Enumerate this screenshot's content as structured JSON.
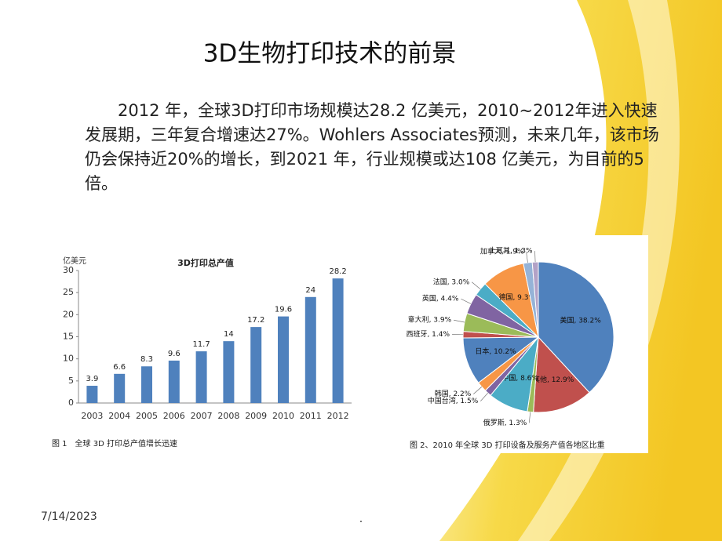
{
  "title": "3D生物打印技术的前景",
  "body": "2012 年，全球3D打印市场规模达28.2 亿美元，2010~2012年进入快速发展期，三年复合增速达27%。Wohlers Associates预测，未来几年，该市场仍会保持近20%的增长，到2021 年，行业规模或达108 亿美元，为目前的5 倍。",
  "chart_data": [
    {
      "type": "bar",
      "title": "3D打印总产值",
      "y_label": "亿美元",
      "caption": "图 1　全球 3D 打印总产值增长迅速",
      "categories": [
        "2003",
        "2004",
        "2005",
        "2006",
        "2007",
        "2008",
        "2009",
        "2010",
        "2011",
        "2012"
      ],
      "values": [
        3.9,
        6.6,
        8.3,
        9.6,
        11.7,
        14,
        17.2,
        19.6,
        24,
        28.2
      ],
      "color": "#4f81bd",
      "ylim": [
        0,
        30
      ],
      "yticks": [
        0,
        5,
        10,
        15,
        20,
        25,
        30
      ]
    },
    {
      "type": "pie",
      "caption": "图 2、2010 年全球 3D 打印设备及服务产值各地区比重",
      "values": [
        38.2,
        12.9,
        1.3,
        8.6,
        1.5,
        2.2,
        10.2,
        1.4,
        3.9,
        4.4,
        3.0,
        9.3,
        1.9,
        1.3
      ],
      "value_labels": [
        "美国, 38.2%",
        "其他, 12.9%",
        "俄罗斯, 1.3%",
        "中国, 8.6%",
        "中国台湾, 1.5%",
        "韩国, 2.2%",
        "日本, 10.2%",
        "西班牙, 1.4%",
        "意大利, 3.9%",
        "英国, 4.4%",
        "法国, 3.0%",
        "德国, 9.3%",
        "加拿大, 1.9%",
        "土耳其, 1.3%"
      ],
      "colors": [
        "#4f81bd",
        "#c0504d",
        "#9bbb59",
        "#4bacc6",
        "#8064a2",
        "#f79646",
        "#4f81bd",
        "#c0504d",
        "#9bbb59",
        "#8064a2",
        "#4bacc6",
        "#f79646",
        "#95b3d7",
        "#b2a2c7"
      ]
    }
  ],
  "footer": {
    "date": "7/14/2023",
    "page": "."
  }
}
